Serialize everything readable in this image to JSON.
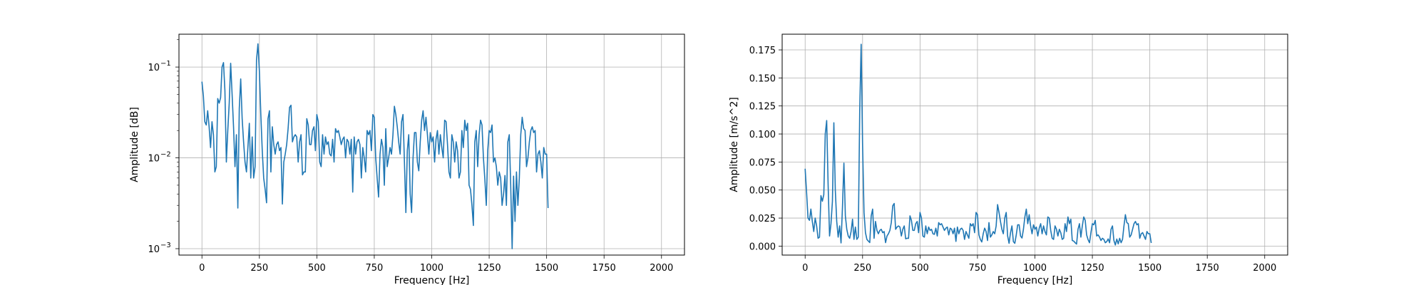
{
  "chart_data": [
    {
      "type": "line",
      "xlabel": "Frequency [Hz]",
      "ylabel": "Amplitude [dB]",
      "yscale": "log",
      "xlim": [
        -100,
        2100
      ],
      "ylim": [
        0.00085,
        0.23
      ],
      "grid": true,
      "color": "#1f77b4",
      "x_ticks": [
        "0",
        "250",
        "500",
        "750",
        "1000",
        "1250",
        "1500",
        "1750",
        "2000"
      ],
      "y_ticks": [
        {
          "base": "10",
          "exp": "−1"
        },
        {
          "base": "10",
          "exp": "−2"
        },
        {
          "base": "10",
          "exp": "−3"
        }
      ],
      "series": [
        {
          "x_start": 0,
          "x_step": 6.25,
          "values": [
            0.069,
            0.048,
            0.025,
            0.023,
            0.033,
            0.022,
            0.013,
            0.025,
            0.018,
            0.007,
            0.008,
            0.045,
            0.04,
            0.046,
            0.1,
            0.112,
            0.055,
            0.009,
            0.02,
            0.04,
            0.11,
            0.05,
            0.022,
            0.008,
            0.018,
            0.0028,
            0.035,
            0.074,
            0.027,
            0.015,
            0.009,
            0.007,
            0.013,
            0.024,
            0.006,
            0.017,
            0.006,
            0.008,
            0.12,
            0.18,
            0.09,
            0.03,
            0.012,
            0.006,
            0.0045,
            0.0032,
            0.027,
            0.033,
            0.007,
            0.022,
            0.014,
            0.011,
            0.014,
            0.015,
            0.012,
            0.013,
            0.0031,
            0.009,
            0.011,
            0.014,
            0.021,
            0.036,
            0.038,
            0.015,
            0.017,
            0.018,
            0.017,
            0.009,
            0.015,
            0.018,
            0.0065,
            0.007,
            0.007,
            0.027,
            0.023,
            0.014,
            0.014,
            0.02,
            0.022,
            0.012,
            0.03,
            0.025,
            0.009,
            0.008,
            0.018,
            0.011,
            0.017,
            0.014,
            0.015,
            0.011,
            0.0105,
            0.016,
            0.009,
            0.021,
            0.019,
            0.02,
            0.017,
            0.014,
            0.016,
            0.017,
            0.01,
            0.016,
            0.015,
            0.011,
            0.016,
            0.0042,
            0.017,
            0.011,
            0.015,
            0.016,
            0.014,
            0.006,
            0.013,
            0.01,
            0.007,
            0.02,
            0.018,
            0.02,
            0.012,
            0.03,
            0.028,
            0.01,
            0.006,
            0.0037,
            0.011,
            0.016,
            0.013,
            0.005,
            0.021,
            0.008,
            0.01,
            0.013,
            0.011,
            0.018,
            0.037,
            0.03,
            0.022,
            0.015,
            0.011,
            0.025,
            0.03,
            0.009,
            0.0025,
            0.012,
            0.018,
            0.004,
            0.0025,
            0.01,
            0.019,
            0.019,
            0.009,
            0.0072,
            0.015,
            0.026,
            0.033,
            0.02,
            0.028,
            0.018,
            0.011,
            0.019,
            0.015,
            0.017,
            0.009,
            0.016,
            0.02,
            0.011,
            0.018,
            0.013,
            0.01,
            0.026,
            0.025,
            0.014,
            0.007,
            0.006,
            0.018,
            0.015,
            0.009,
            0.015,
            0.012,
            0.006,
            0.007,
            0.02,
            0.013,
            0.026,
            0.02,
            0.024,
            0.005,
            0.0045,
            0.003,
            0.0018,
            0.015,
            0.02,
            0.008,
            0.018,
            0.026,
            0.023,
            0.01,
            0.0058,
            0.003,
            0.012,
            0.02,
            0.019,
            0.023,
            0.009,
            0.01,
            0.008,
            0.005,
            0.007,
            0.006,
            0.003,
            0.004,
            0.0064,
            0.003,
            0.015,
            0.018,
            0.005,
            0.001,
            0.0063,
            0.002,
            0.007,
            0.003,
            0.006,
            0.018,
            0.028,
            0.021,
            0.02,
            0.008,
            0.01,
            0.015,
            0.02,
            0.022,
            0.019,
            0.02,
            0.007,
            0.011,
            0.012,
            0.009,
            0.006,
            0.013,
            0.011,
            0.011,
            0.0028
          ]
        }
      ]
    },
    {
      "type": "line",
      "xlabel": "Frequency [Hz]",
      "ylabel": "Amplitude [m/s^2]",
      "yscale": "linear",
      "xlim": [
        -100,
        2100
      ],
      "ylim": [
        -0.008,
        0.189
      ],
      "grid": true,
      "color": "#1f77b4",
      "x_ticks": [
        "0",
        "250",
        "500",
        "750",
        "1000",
        "1250",
        "1500",
        "1750",
        "2000"
      ],
      "y_ticks": [
        "0.000",
        "0.025",
        "0.050",
        "0.075",
        "0.100",
        "0.125",
        "0.150",
        "0.175"
      ],
      "series": [
        {
          "x_start": 0,
          "x_step": 6.25,
          "values": [
            0.069,
            0.048,
            0.025,
            0.023,
            0.033,
            0.022,
            0.013,
            0.025,
            0.018,
            0.007,
            0.008,
            0.045,
            0.04,
            0.046,
            0.1,
            0.112,
            0.055,
            0.009,
            0.02,
            0.04,
            0.11,
            0.05,
            0.022,
            0.008,
            0.018,
            0.0028,
            0.035,
            0.074,
            0.027,
            0.015,
            0.009,
            0.007,
            0.013,
            0.024,
            0.006,
            0.017,
            0.006,
            0.008,
            0.12,
            0.18,
            0.09,
            0.03,
            0.012,
            0.006,
            0.0045,
            0.0032,
            0.027,
            0.033,
            0.007,
            0.022,
            0.014,
            0.011,
            0.014,
            0.015,
            0.012,
            0.013,
            0.0031,
            0.009,
            0.011,
            0.014,
            0.021,
            0.036,
            0.038,
            0.015,
            0.017,
            0.018,
            0.017,
            0.009,
            0.015,
            0.018,
            0.0065,
            0.007,
            0.007,
            0.027,
            0.023,
            0.014,
            0.014,
            0.02,
            0.022,
            0.012,
            0.03,
            0.025,
            0.009,
            0.008,
            0.018,
            0.011,
            0.017,
            0.014,
            0.015,
            0.011,
            0.0105,
            0.016,
            0.009,
            0.021,
            0.019,
            0.02,
            0.017,
            0.014,
            0.016,
            0.017,
            0.01,
            0.016,
            0.015,
            0.011,
            0.016,
            0.0042,
            0.017,
            0.011,
            0.015,
            0.016,
            0.014,
            0.006,
            0.013,
            0.01,
            0.007,
            0.02,
            0.018,
            0.02,
            0.012,
            0.03,
            0.028,
            0.01,
            0.006,
            0.0037,
            0.011,
            0.016,
            0.013,
            0.005,
            0.021,
            0.008,
            0.01,
            0.013,
            0.011,
            0.018,
            0.037,
            0.03,
            0.022,
            0.015,
            0.011,
            0.025,
            0.03,
            0.009,
            0.0025,
            0.012,
            0.018,
            0.004,
            0.0025,
            0.01,
            0.019,
            0.019,
            0.009,
            0.0072,
            0.015,
            0.026,
            0.033,
            0.02,
            0.028,
            0.018,
            0.011,
            0.019,
            0.015,
            0.017,
            0.009,
            0.016,
            0.02,
            0.011,
            0.018,
            0.013,
            0.01,
            0.026,
            0.025,
            0.014,
            0.007,
            0.006,
            0.018,
            0.015,
            0.009,
            0.015,
            0.012,
            0.006,
            0.007,
            0.02,
            0.013,
            0.026,
            0.02,
            0.024,
            0.005,
            0.0045,
            0.003,
            0.0018,
            0.015,
            0.02,
            0.008,
            0.018,
            0.026,
            0.023,
            0.01,
            0.0058,
            0.003,
            0.012,
            0.02,
            0.019,
            0.023,
            0.009,
            0.01,
            0.008,
            0.005,
            0.007,
            0.006,
            0.003,
            0.004,
            0.0064,
            0.003,
            0.015,
            0.018,
            0.005,
            0.001,
            0.0063,
            0.002,
            0.007,
            0.003,
            0.006,
            0.018,
            0.028,
            0.021,
            0.02,
            0.008,
            0.01,
            0.015,
            0.02,
            0.022,
            0.019,
            0.02,
            0.007,
            0.011,
            0.012,
            0.009,
            0.006,
            0.013,
            0.011,
            0.011,
            0.0028
          ]
        }
      ]
    }
  ]
}
